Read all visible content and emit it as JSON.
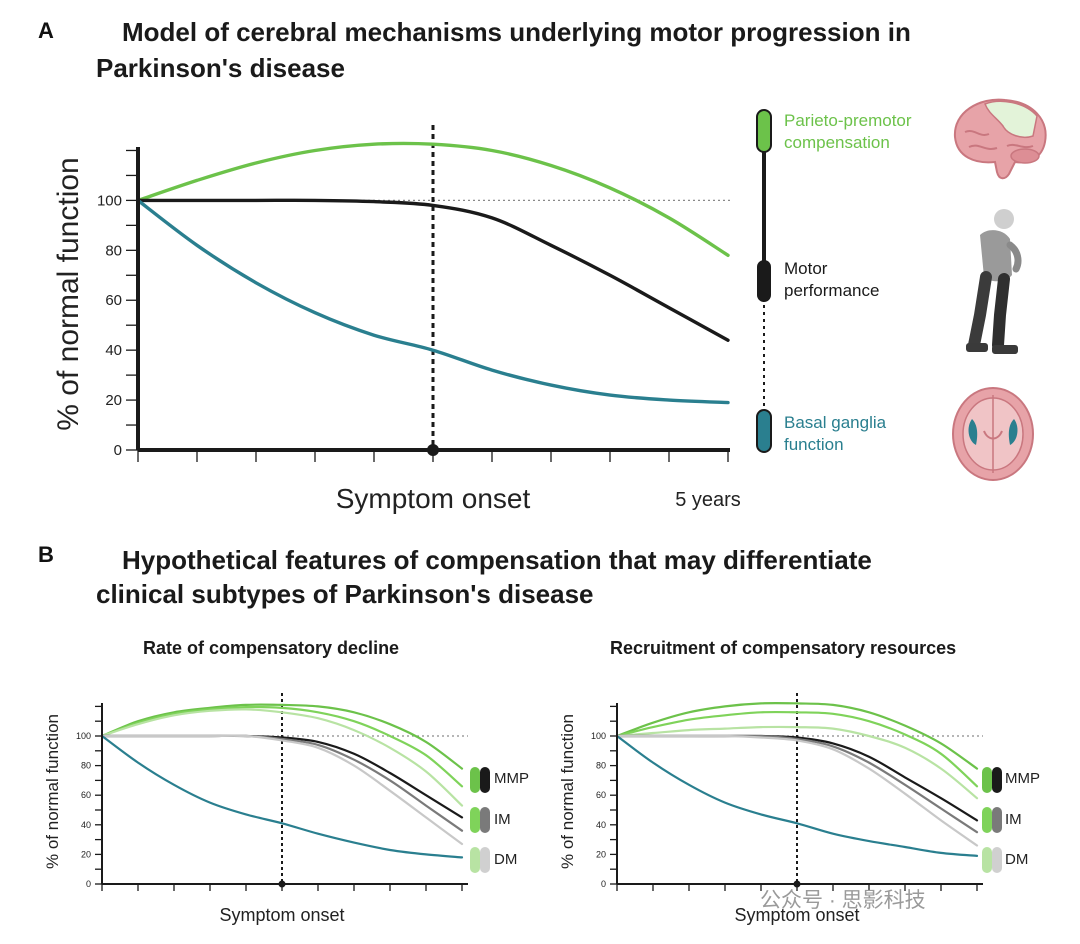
{
  "panel_a": {
    "letter": "A",
    "title_line1": "Model of cerebral mechanisms underlying motor progression in",
    "title_line2": "Parkinson's disease",
    "legend": {
      "green": {
        "line1": "Parieto-premotor",
        "line2": "compensation",
        "color": "#6cc24a"
      },
      "black": {
        "line1": "Motor",
        "line2": "performance",
        "color": "#1a1a1a"
      },
      "teal": {
        "line1": "Basal ganglia",
        "line2": "function",
        "color": "#2a7f8f"
      }
    }
  },
  "panel_b": {
    "letter": "B",
    "title_line1": "Hypothetical features of compensation that may differentiate",
    "title_line2": "clinical subtypes of Parkinson's disease",
    "left_title": "Rate of compensatory decline",
    "right_title": "Recruitment of compensatory resources",
    "subtypes": [
      "MMP",
      "IM",
      "DM"
    ]
  },
  "watermark": "公众号 · 思影科技",
  "chart_data": [
    {
      "type": "line",
      "title": "Model of cerebral mechanisms underlying motor progression in Parkinson's disease",
      "xlabel": "Symptom onset",
      "x_end_label": "5 years",
      "ylabel": "% of normal function",
      "yticks": [
        0,
        20,
        40,
        60,
        80,
        100
      ],
      "ylim": [
        0,
        125
      ],
      "xlim": [
        0,
        10
      ],
      "reference_line": 100,
      "onset_x": 5,
      "series": [
        {
          "name": "Parieto-premotor compensation",
          "color": "#6cc24a",
          "x": [
            0,
            1,
            2,
            3,
            4,
            5,
            6,
            7,
            8,
            9,
            10
          ],
          "values": [
            100,
            108,
            115,
            120,
            122.5,
            122.5,
            120,
            114,
            105,
            93,
            78
          ]
        },
        {
          "name": "Motor performance",
          "color": "#1a1a1a",
          "x": [
            0,
            1,
            2,
            3,
            4,
            5,
            6,
            7,
            8,
            9,
            10
          ],
          "values": [
            100,
            100,
            100,
            100,
            99.5,
            98,
            93,
            82,
            70,
            57,
            44
          ]
        },
        {
          "name": "Basal ganglia function",
          "color": "#2a7f8f",
          "x": [
            0,
            1,
            2,
            3,
            4,
            5,
            6,
            7,
            8,
            9,
            10
          ],
          "values": [
            100,
            82,
            67,
            55,
            46,
            40,
            32,
            26,
            22,
            20,
            19
          ]
        }
      ]
    },
    {
      "type": "line",
      "title": "Rate of compensatory decline",
      "xlabel": "Symptom onset",
      "ylabel": "% of normal function",
      "yticks": [
        0,
        20,
        40,
        60,
        80,
        100
      ],
      "ylim": [
        0,
        125
      ],
      "xlim": [
        0,
        10
      ],
      "reference_line": 100,
      "onset_x": 5,
      "series": [
        {
          "name": "MMP compensation",
          "color": "#6cc24a",
          "x": [
            0,
            1,
            2,
            3,
            4,
            5,
            6,
            7,
            8,
            9,
            10
          ],
          "values": [
            100,
            110,
            116,
            119,
            121,
            121,
            120,
            116,
            108,
            96,
            78
          ]
        },
        {
          "name": "IM compensation",
          "color": "#7fd35a",
          "x": [
            0,
            1,
            2,
            3,
            4,
            5,
            6,
            7,
            8,
            9,
            10
          ],
          "values": [
            100,
            109,
            115,
            118,
            119.5,
            119,
            116,
            110,
            100,
            87,
            66
          ]
        },
        {
          "name": "DM compensation",
          "color": "#b8e3a3",
          "x": [
            0,
            1,
            2,
            3,
            4,
            5,
            6,
            7,
            8,
            9,
            10
          ],
          "values": [
            100,
            108,
            114,
            117,
            118,
            116,
            112,
            104,
            92,
            76,
            53
          ]
        },
        {
          "name": "MMP motor",
          "color": "#1a1a1a",
          "x": [
            0,
            1,
            2,
            3,
            4,
            5,
            6,
            7,
            8,
            9,
            10
          ],
          "values": [
            100,
            100,
            100,
            100,
            100,
            99,
            96,
            88,
            75,
            60,
            45
          ]
        },
        {
          "name": "IM motor",
          "color": "#7a7a7a",
          "x": [
            0,
            1,
            2,
            3,
            4,
            5,
            6,
            7,
            8,
            9,
            10
          ],
          "values": [
            100,
            100,
            100,
            100,
            100,
            98,
            94,
            84,
            70,
            53,
            36
          ]
        },
        {
          "name": "DM motor",
          "color": "#c8c8c8",
          "x": [
            0,
            1,
            2,
            3,
            4,
            5,
            6,
            7,
            8,
            9,
            10
          ],
          "values": [
            100,
            100,
            100,
            100,
            100,
            97,
            92,
            80,
            63,
            45,
            27
          ]
        },
        {
          "name": "Basal ganglia",
          "color": "#2a7f8f",
          "x": [
            0,
            1,
            2,
            3,
            4,
            5,
            6,
            7,
            8,
            9,
            10
          ],
          "values": [
            100,
            82,
            67,
            55,
            47,
            41,
            34,
            28,
            23,
            20,
            18
          ]
        }
      ]
    },
    {
      "type": "line",
      "title": "Recruitment of compensatory resources",
      "xlabel": "Symptom onset",
      "ylabel": "% of normal function",
      "yticks": [
        0,
        20,
        40,
        60,
        80,
        100
      ],
      "ylim": [
        0,
        125
      ],
      "xlim": [
        0,
        10
      ],
      "reference_line": 100,
      "onset_x": 5,
      "series": [
        {
          "name": "MMP compensation",
          "color": "#6cc24a",
          "x": [
            0,
            1,
            2,
            3,
            4,
            5,
            6,
            7,
            8,
            9,
            10
          ],
          "values": [
            100,
            109,
            116,
            120,
            122,
            122,
            121,
            116,
            107,
            95,
            78
          ]
        },
        {
          "name": "IM compensation",
          "color": "#7fd35a",
          "x": [
            0,
            1,
            2,
            3,
            4,
            5,
            6,
            7,
            8,
            9,
            10
          ],
          "values": [
            100,
            106,
            111,
            114,
            116,
            116,
            115,
            110,
            101,
            88,
            66
          ]
        },
        {
          "name": "DM compensation",
          "color": "#b8e3a3",
          "x": [
            0,
            1,
            2,
            3,
            4,
            5,
            6,
            7,
            8,
            9,
            10
          ],
          "values": [
            100,
            102,
            104,
            105,
            106,
            106,
            105,
            100,
            92,
            78,
            58
          ]
        },
        {
          "name": "MMP motor",
          "color": "#1a1a1a",
          "x": [
            0,
            1,
            2,
            3,
            4,
            5,
            6,
            7,
            8,
            9,
            10
          ],
          "values": [
            100,
            100,
            100,
            100,
            100,
            99,
            95,
            86,
            72,
            58,
            43
          ]
        },
        {
          "name": "IM motor",
          "color": "#7a7a7a",
          "x": [
            0,
            1,
            2,
            3,
            4,
            5,
            6,
            7,
            8,
            9,
            10
          ],
          "values": [
            100,
            100,
            100,
            100,
            100,
            98,
            93,
            82,
            67,
            51,
            35
          ]
        },
        {
          "name": "DM motor",
          "color": "#c8c8c8",
          "x": [
            0,
            1,
            2,
            3,
            4,
            5,
            6,
            7,
            8,
            9,
            10
          ],
          "values": [
            100,
            100,
            100,
            100,
            99,
            97,
            91,
            78,
            61,
            43,
            26
          ]
        },
        {
          "name": "Basal ganglia",
          "color": "#2a7f8f",
          "x": [
            0,
            1,
            2,
            3,
            4,
            5,
            6,
            7,
            8,
            9,
            10
          ],
          "values": [
            100,
            82,
            67,
            55,
            47,
            41,
            34,
            29,
            25,
            21,
            19
          ]
        }
      ]
    }
  ]
}
